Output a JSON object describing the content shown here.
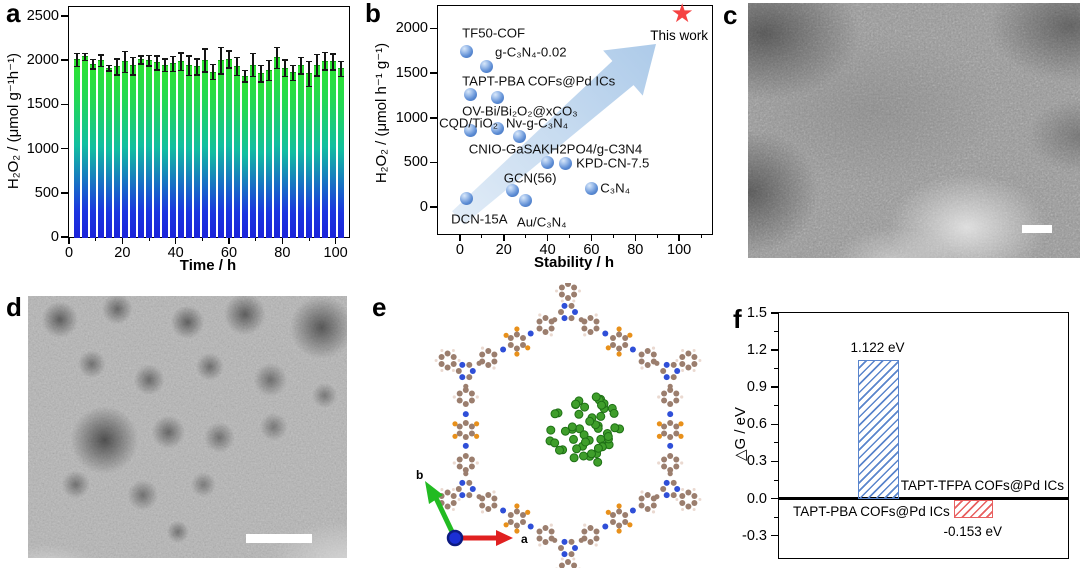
{
  "figure": {
    "panel_letters": {
      "a": "a",
      "b": "b",
      "c": "c",
      "d": "d",
      "e": "e",
      "f": "f"
    }
  },
  "chart_data": [
    {
      "panel": "a",
      "type": "bar",
      "title": "",
      "xlabel": "Time / h",
      "ylabel": "H₂O₂ / (μmol g⁻¹h⁻¹)",
      "xlim": [
        0,
        105
      ],
      "ylim": [
        0,
        2600
      ],
      "xticks": [
        0,
        20,
        40,
        60,
        80,
        100
      ],
      "xminor": [
        10,
        30,
        50,
        70,
        90
      ],
      "yticks": [
        0,
        500,
        1000,
        1500,
        2000,
        2500
      ],
      "bar_gradient": [
        "#2ee42e",
        "#12bfa0",
        "#1c24da"
      ],
      "x": [
        3,
        6,
        9,
        12,
        15,
        18,
        21,
        24,
        27,
        30,
        33,
        36,
        39,
        42,
        45,
        48,
        51,
        54,
        57,
        60,
        63,
        66,
        69,
        72,
        75,
        78,
        81,
        84,
        87,
        90,
        93,
        96,
        99,
        102
      ],
      "values": [
        2010,
        2045,
        1960,
        2000,
        1915,
        1930,
        1985,
        1940,
        2010,
        2000,
        1975,
        1950,
        1965,
        1990,
        1945,
        1930,
        2005,
        1870,
        2000,
        2015,
        1935,
        1825,
        1950,
        1855,
        1890,
        2030,
        1915,
        1860,
        1945,
        1850,
        1950,
        1995,
        1985,
        1905
      ],
      "errors": [
        75,
        40,
        55,
        65,
        30,
        90,
        120,
        100,
        45,
        60,
        80,
        70,
        85,
        100,
        110,
        90,
        130,
        85,
        150,
        95,
        100,
        65,
        130,
        95,
        110,
        120,
        95,
        85,
        95,
        140,
        120,
        100,
        90,
        85
      ]
    },
    {
      "panel": "b",
      "type": "scatter",
      "title": "",
      "xlabel": "Stability / h",
      "ylabel": "H₂O₂ / (μmol h⁻¹ g⁻¹)",
      "xlim": [
        -10,
        115
      ],
      "ylim": [
        -300,
        2250
      ],
      "xticks": [
        0,
        20,
        40,
        60,
        80,
        100
      ],
      "xminor": [
        10,
        30,
        50,
        70,
        90,
        110
      ],
      "yticks": [
        0,
        500,
        1000,
        1500,
        2000
      ],
      "point_color": "#5c8cd4",
      "arrow_color": "#a9c8e8",
      "points": [
        {
          "name": "TF50-COF",
          "x": 3,
          "y": 1740
        },
        {
          "name": "g-C₃N₄-0.02",
          "x": 12,
          "y": 1575
        },
        {
          "name": "TAPT-PBA COFs@Pd ICs",
          "x": 5,
          "y": 1260
        },
        {
          "name": "OV-Bi/Bi₂O₂@xCO₃",
          "x": 17,
          "y": 1230
        },
        {
          "name": "CQD/TiO₂",
          "x": 5,
          "y": 860
        },
        {
          "name": "Nv-g-C₃N₄",
          "x": 17,
          "y": 875
        },
        {
          "name": "CNIO-GaSA",
          "x": 27,
          "y": 795
        },
        {
          "name": "KH2PO4/g-C3N4",
          "x": 40,
          "y": 500
        },
        {
          "name": "KPD-CN-7.5",
          "x": 48,
          "y": 490
        },
        {
          "name": "GCN(56)",
          "x": 24,
          "y": 190
        },
        {
          "name": "C₃N₄",
          "x": 60,
          "y": 210
        },
        {
          "name": "DCN-15A",
          "x": 3,
          "y": 100
        },
        {
          "name": "Au/C₃N₄",
          "x": 30,
          "y": 70
        }
      ],
      "highlight": {
        "name": "This work",
        "x": 102,
        "y": 2150,
        "marker": "star",
        "color": "#f54242"
      }
    },
    {
      "panel": "f",
      "type": "bar",
      "title": "",
      "ylabel": "△G / eV",
      "ylim": [
        -0.48,
        1.5
      ],
      "yticks": [
        1.5,
        1.2,
        0.9,
        0.6,
        0.3,
        0.0,
        -0.3
      ],
      "yminor": [
        1.35,
        1.05,
        0.75,
        0.45,
        0.15,
        -0.15
      ],
      "bars": [
        {
          "name": "TAPT-PBA COFs@Pd ICs",
          "value": 1.122,
          "value_label": "1.122 eV",
          "color": "#5a85cc"
        },
        {
          "name": "TAPT-TFPA COFs@Pd ICs",
          "value": -0.153,
          "value_label": "-0.153 eV",
          "color": "#e86060"
        }
      ]
    }
  ],
  "panel_c": {
    "has_scale_bar": true
  },
  "panel_d": {
    "has_scale_bar": true
  },
  "panel_e": {
    "axis_labels": {
      "a": "a",
      "b": "b"
    },
    "atom_colors": {
      "carbon": "#9b7e6e",
      "nitrogen": "#2f4fd8",
      "fluorine": "#e8901a",
      "hydrogen": "#ead9d0",
      "palladium": "#3f9e2b"
    }
  }
}
